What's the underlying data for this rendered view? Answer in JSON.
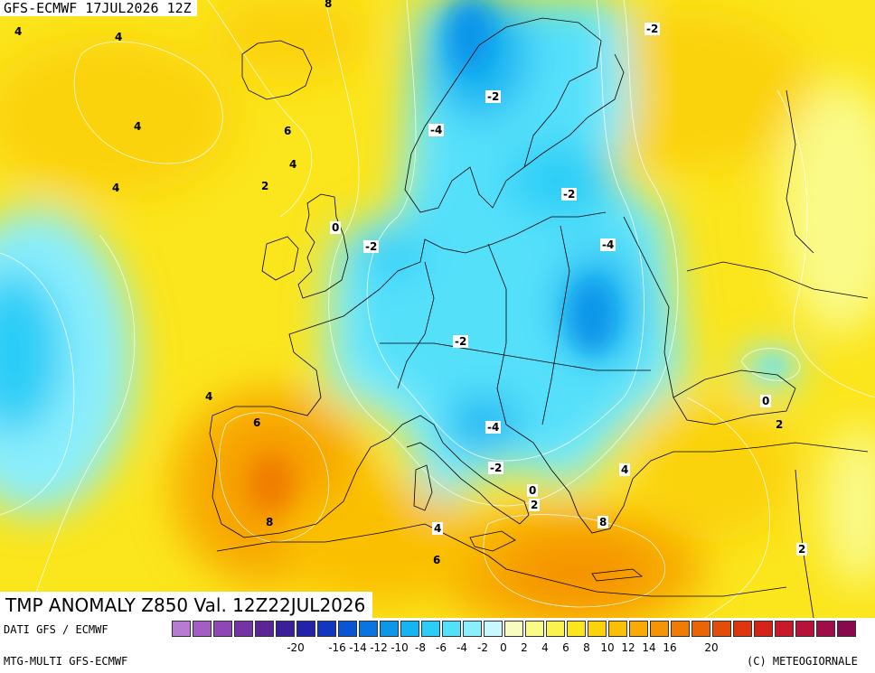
{
  "header": {
    "title": "GFS-ECMWF 17JUL2026 12Z"
  },
  "anomaly_title": "TMP ANOMALY Z850 Val. 12Z22JUL2026",
  "footer": {
    "source_left": "DATI GFS / ECMWF",
    "model_left": "MTG-MULTI GFS-ECMWF",
    "copyright": "(C) METEOGIORNALE"
  },
  "legend": {
    "colors": [
      "#b77bd1",
      "#a35ec4",
      "#8f47b5",
      "#7434a3",
      "#5a2595",
      "#3a1f98",
      "#2323a8",
      "#1236bf",
      "#0a55d4",
      "#0a75e0",
      "#0d96ea",
      "#17b4f2",
      "#2ccdf7",
      "#55e0fa",
      "#8aeefc",
      "#c8f8fe",
      "#f8fcc0",
      "#fafa88",
      "#fbf24e",
      "#fbe51c",
      "#fbd30a",
      "#fac006",
      "#f8ab05",
      "#f59404",
      "#f07c05",
      "#eb6406",
      "#e44c0a",
      "#de360f",
      "#d52417",
      "#c9192a",
      "#b8123a",
      "#a10d46",
      "#880a4c"
    ],
    "ticks": [
      "-20",
      "-16",
      "-14",
      "-12",
      "-10",
      "-8",
      "-6",
      "-4",
      "-2",
      "0",
      "2",
      "4",
      "6",
      "8",
      "10",
      "12",
      "14",
      "16",
      "20"
    ],
    "tick_values": [
      -20,
      -16,
      -14,
      -12,
      -10,
      -8,
      -6,
      -4,
      -2,
      0,
      2,
      4,
      6,
      8,
      10,
      12,
      14,
      16,
      20
    ]
  },
  "contour_labels": [
    {
      "text": "8"
    },
    {
      "text": "4"
    },
    {
      "text": "4"
    },
    {
      "text": "-2"
    },
    {
      "text": "-2"
    },
    {
      "text": "-4"
    },
    {
      "text": "4"
    },
    {
      "text": "6"
    },
    {
      "text": "4"
    },
    {
      "text": "4"
    },
    {
      "text": "2"
    },
    {
      "text": "-2"
    },
    {
      "text": "0"
    },
    {
      "text": "-2"
    },
    {
      "text": "-4"
    },
    {
      "text": "-2"
    },
    {
      "text": "4"
    },
    {
      "text": "6"
    },
    {
      "text": "0"
    },
    {
      "text": "2"
    },
    {
      "text": "-4"
    },
    {
      "text": "-2"
    },
    {
      "text": "4"
    },
    {
      "text": "0"
    },
    {
      "text": "2"
    },
    {
      "text": "8"
    },
    {
      "text": "8"
    },
    {
      "text": "4"
    },
    {
      "text": "6"
    },
    {
      "text": "2"
    }
  ]
}
